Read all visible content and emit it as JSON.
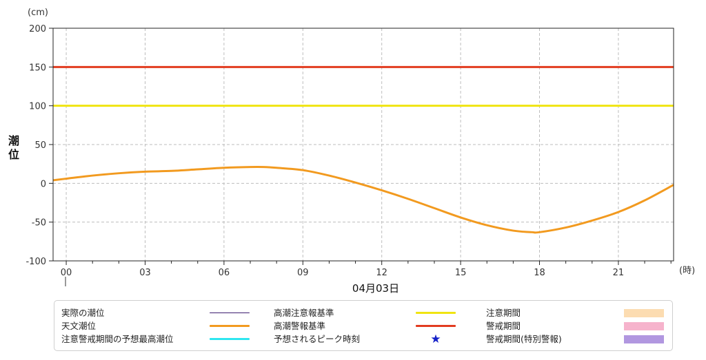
{
  "chart_data": {
    "type": "line",
    "ylabel": "潮位",
    "yunit": "(cm)",
    "xunit": "(時)",
    "date_label": "04月03日",
    "ylim": [
      -100,
      200
    ],
    "yticks": [
      -100,
      -50,
      0,
      50,
      100,
      150,
      200
    ],
    "xlim": [
      -0.5,
      23.1
    ],
    "xticks": [
      0,
      3,
      6,
      9,
      12,
      15,
      18,
      21
    ],
    "xtick_labels": [
      "00",
      "03",
      "06",
      "09",
      "12",
      "15",
      "18",
      "21"
    ],
    "grid": true,
    "reference_lines": [
      {
        "name": "高潮警報基準",
        "y": 150,
        "color": "#e23b1f"
      },
      {
        "name": "高潮注意報基準",
        "y": 100,
        "color": "#f0e410"
      }
    ],
    "series": [
      {
        "name": "天文潮位",
        "color": "#f29a1f",
        "x": [
          -0.5,
          0,
          1,
          2,
          3,
          4,
          5,
          6,
          7,
          7.5,
          8,
          9,
          10,
          11,
          12,
          13,
          14,
          15,
          16,
          17,
          17.7,
          18,
          19,
          20,
          21,
          22,
          23.1
        ],
        "y": [
          4,
          6,
          10,
          13,
          15,
          16,
          18,
          20,
          21,
          21,
          20,
          17,
          10,
          1,
          -9,
          -20,
          -32,
          -44,
          -54,
          -61,
          -63,
          -63,
          -57,
          -48,
          -37,
          -22,
          -2
        ]
      }
    ]
  },
  "legend": {
    "items": [
      {
        "label": "実際の潮位",
        "color": "#3b1a6e",
        "kind": "thin-line"
      },
      {
        "label": "天文潮位",
        "color": "#f29a1f",
        "kind": "line"
      },
      {
        "label": "注意警戒期間の予想最高潮位",
        "color": "#2ee6f0",
        "kind": "line"
      },
      {
        "label": "高潮注意報基準",
        "color": "#f0e410",
        "kind": "line"
      },
      {
        "label": "高潮警報基準",
        "color": "#e23b1f",
        "kind": "line"
      },
      {
        "label": "予想されるピーク時刻",
        "color": "#1420c8",
        "kind": "star",
        "symbol": "★"
      },
      {
        "label": "注意期間",
        "color": "#fcdcb1",
        "kind": "block"
      },
      {
        "label": "警戒期間",
        "color": "#f6b3cc",
        "kind": "block"
      },
      {
        "label": "警戒期間(特別警報)",
        "color": "#b197e0",
        "kind": "block"
      }
    ]
  }
}
